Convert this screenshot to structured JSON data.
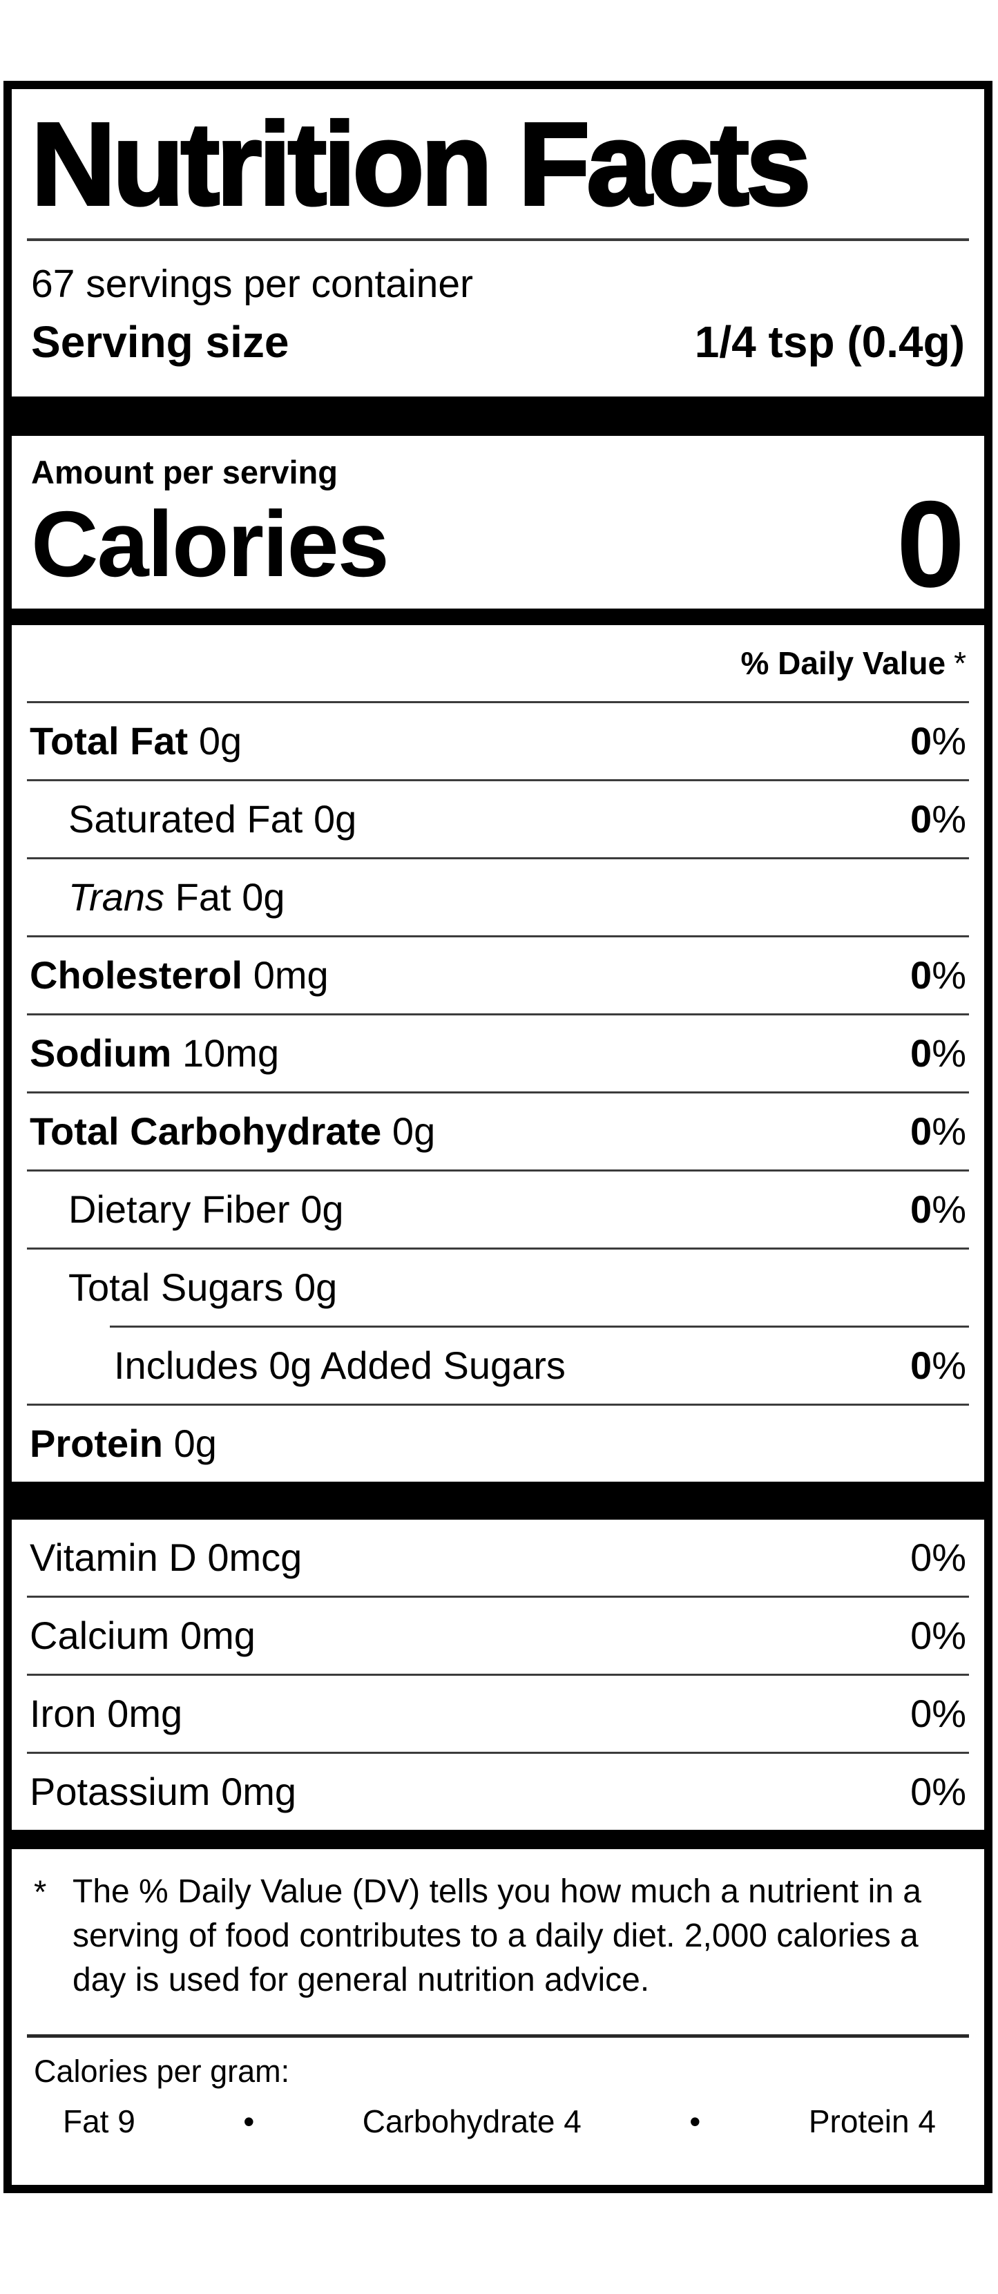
{
  "label": {
    "title": "Nutrition Facts",
    "servings_per_container": "67 servings per container",
    "serving_size_label": "Serving size",
    "serving_size_value": "1/4 tsp (0.4g)",
    "amount_per_serving": "Amount per serving",
    "calories_label": "Calories",
    "calories_value": "0",
    "daily_value_header": "% Daily Value",
    "daily_value_asterisk": "*",
    "nutrients": [
      {
        "name": "Total Fat",
        "amount": "0g",
        "dv": "0",
        "dv_unit": "%"
      },
      {
        "name": "Saturated Fat",
        "amount": "0g",
        "dv": "0",
        "dv_unit": "%"
      },
      {
        "name_italic": "Trans",
        "name_rest": "Fat",
        "amount": "0g"
      },
      {
        "name": "Cholesterol",
        "amount": "0mg",
        "dv": "0",
        "dv_unit": "%"
      },
      {
        "name": "Sodium",
        "amount": "10mg",
        "dv": "0",
        "dv_unit": "%"
      },
      {
        "name": "Total Carbohydrate",
        "amount": "0g",
        "dv": "0",
        "dv_unit": "%"
      },
      {
        "name": "Dietary Fiber",
        "amount": "0g",
        "dv": "0",
        "dv_unit": "%"
      },
      {
        "name": "Total Sugars",
        "amount": "0g"
      },
      {
        "name": "Includes",
        "amount": "0g Added Sugars",
        "dv": "0",
        "dv_unit": "%"
      },
      {
        "name": "Protein",
        "amount": "0g"
      }
    ],
    "vitamins": [
      {
        "name": "Vitamin D",
        "amount": "0mcg",
        "dv": "0%"
      },
      {
        "name": "Calcium",
        "amount": "0mg",
        "dv": "0%"
      },
      {
        "name": "Iron",
        "amount": "0mg",
        "dv": "0%"
      },
      {
        "name": "Potassium",
        "amount": "0mg",
        "dv": "0%"
      }
    ],
    "footnote_marker": "*",
    "footnote_text": "The % Daily Value (DV) tells you how much a nutrient in a serving of food contributes to a daily diet. 2,000 calories a day is used for general nutrition advice.",
    "calories_per_gram": {
      "heading": "Calories per gram:",
      "bullet": "•",
      "items": [
        "Fat 9",
        "Carbohydrate 4",
        "Protein 4"
      ]
    }
  }
}
